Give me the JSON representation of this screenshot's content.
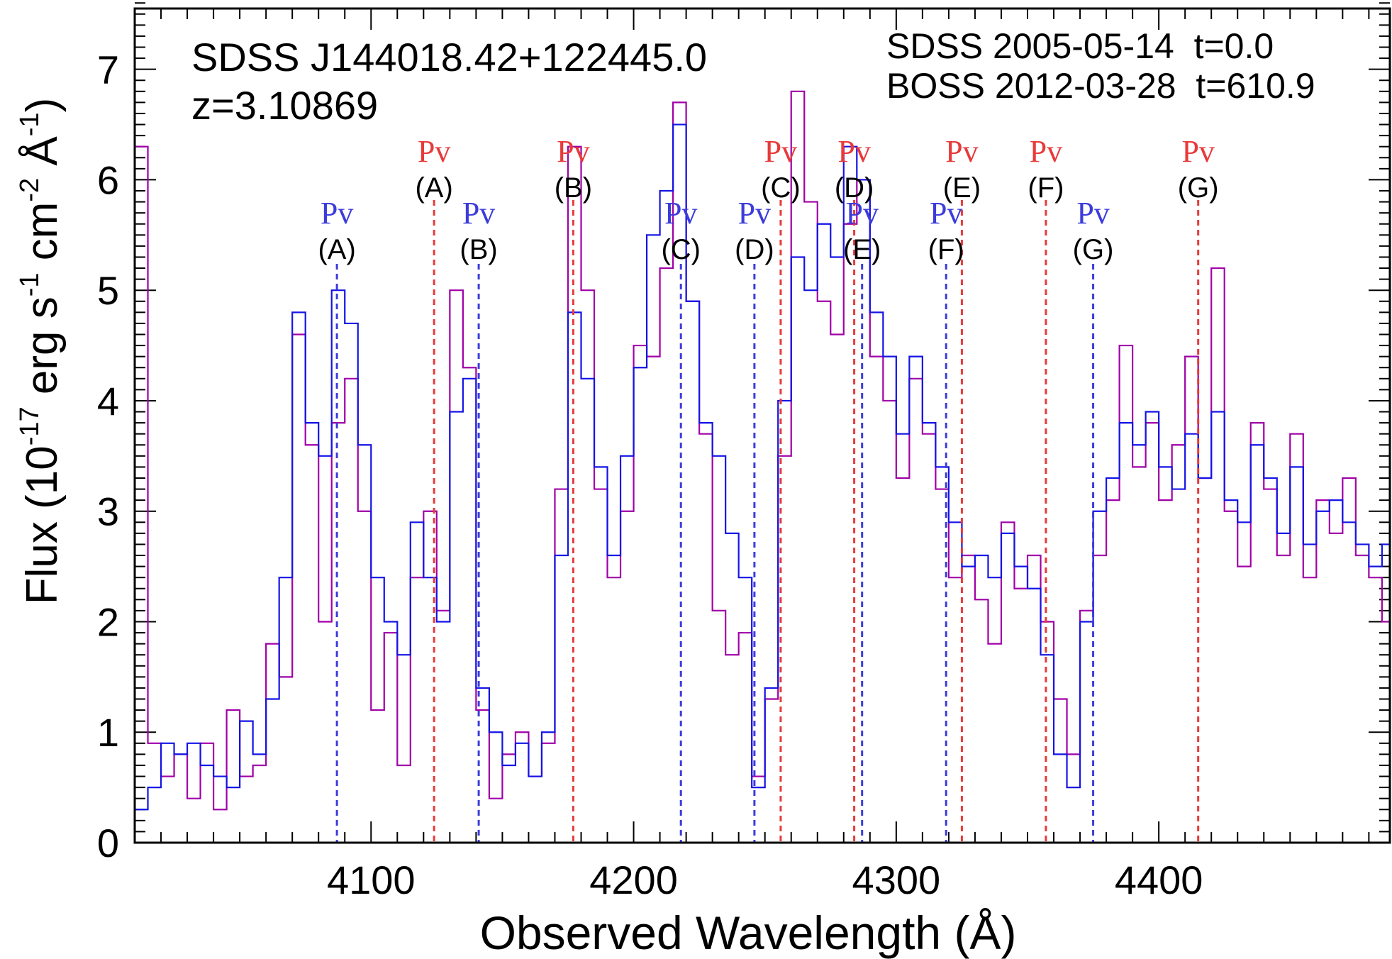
{
  "chart_data": {
    "type": "line",
    "title": "SDSS J144018.42+122445.0",
    "subtitle": "z=3.10869",
    "xlabel": "Observed Wavelength (Å)",
    "ylabel": {
      "prefix": "Flux (10",
      "exp1": "-17",
      "part2": " erg s",
      "exp2": "-1",
      "part3": " cm",
      "exp3": "-2",
      "part4": " Å",
      "exp4": "-1",
      "suffix": ")"
    },
    "xlim": [
      4010,
      4488
    ],
    "ylim": [
      0,
      7.55
    ],
    "xticks": [
      4100,
      4200,
      4300,
      4400
    ],
    "yticks": [
      0,
      1,
      2,
      3,
      4,
      5,
      6,
      7
    ],
    "legend_position": "top-right",
    "series": [
      {
        "name": "SDSS 2005-05-14",
        "label": "SDSS 2005-05-14  t=0.0",
        "color": "#a000a8",
        "x": [
          4010,
          4015,
          4020,
          4025,
          4030,
          4035,
          4040,
          4045,
          4050,
          4055,
          4060,
          4065,
          4070,
          4075,
          4080,
          4085,
          4090,
          4095,
          4100,
          4105,
          4110,
          4115,
          4120,
          4125,
          4130,
          4135,
          4140,
          4145,
          4150,
          4155,
          4160,
          4165,
          4170,
          4175,
          4180,
          4185,
          4190,
          4195,
          4200,
          4205,
          4210,
          4215,
          4220,
          4225,
          4230,
          4235,
          4240,
          4245,
          4250,
          4255,
          4260,
          4265,
          4270,
          4275,
          4280,
          4285,
          4290,
          4295,
          4300,
          4305,
          4310,
          4315,
          4320,
          4325,
          4330,
          4335,
          4340,
          4345,
          4350,
          4355,
          4360,
          4365,
          4370,
          4375,
          4380,
          4385,
          4390,
          4395,
          4400,
          4405,
          4410,
          4415,
          4420,
          4425,
          4430,
          4435,
          4440,
          4445,
          4450,
          4455,
          4460,
          4465,
          4470,
          4475,
          4480,
          4485,
          4488
        ],
        "y": [
          6.3,
          0.9,
          0.6,
          0.8,
          0.4,
          0.9,
          0.3,
          1.2,
          0.6,
          0.7,
          1.8,
          1.5,
          4.6,
          3.6,
          2.0,
          3.8,
          4.2,
          3.0,
          1.2,
          1.9,
          0.7,
          2.4,
          3.0,
          2.1,
          5.0,
          4.3,
          1.2,
          0.4,
          0.8,
          1.0,
          0.6,
          0.9,
          3.2,
          6.3,
          5.0,
          3.2,
          2.4,
          3.0,
          4.5,
          4.4,
          5.2,
          6.7,
          4.9,
          3.7,
          2.1,
          1.7,
          1.9,
          0.6,
          1.3,
          3.5,
          6.8,
          5.8,
          4.9,
          4.6,
          5.6,
          6.0,
          4.4,
          4.0,
          3.3,
          4.2,
          3.7,
          3.2,
          2.4,
          2.6,
          2.2,
          1.8,
          2.9,
          2.3,
          2.6,
          2.0,
          1.3,
          0.8,
          2.1,
          2.6,
          3.1,
          4.5,
          3.4,
          3.8,
          3.1,
          3.6,
          4.4,
          3.3,
          5.2,
          3.0,
          2.5,
          3.8,
          3.2,
          2.6,
          3.7,
          2.4,
          3.1,
          2.8,
          3.3,
          2.6,
          2.4,
          2.0,
          2.3
        ]
      },
      {
        "name": "BOSS 2012-03-28",
        "label": "BOSS 2012-03-28  t=610.9",
        "color": "#1414e6",
        "x": [
          4010,
          4015,
          4020,
          4025,
          4030,
          4035,
          4040,
          4045,
          4050,
          4055,
          4060,
          4065,
          4070,
          4075,
          4080,
          4085,
          4090,
          4095,
          4100,
          4105,
          4110,
          4115,
          4120,
          4125,
          4130,
          4135,
          4140,
          4145,
          4150,
          4155,
          4160,
          4165,
          4170,
          4175,
          4180,
          4185,
          4190,
          4195,
          4200,
          4205,
          4210,
          4215,
          4220,
          4225,
          4230,
          4235,
          4240,
          4245,
          4250,
          4255,
          4260,
          4265,
          4270,
          4275,
          4280,
          4285,
          4290,
          4295,
          4300,
          4305,
          4310,
          4315,
          4320,
          4325,
          4330,
          4335,
          4340,
          4345,
          4350,
          4355,
          4360,
          4365,
          4370,
          4375,
          4380,
          4385,
          4390,
          4395,
          4400,
          4405,
          4410,
          4415,
          4420,
          4425,
          4430,
          4435,
          4440,
          4445,
          4450,
          4455,
          4460,
          4465,
          4470,
          4475,
          4480,
          4485,
          4488
        ],
        "y": [
          0.3,
          0.5,
          0.9,
          0.8,
          0.9,
          0.7,
          0.6,
          0.5,
          1.1,
          0.8,
          1.3,
          2.4,
          4.8,
          3.8,
          3.5,
          5.0,
          4.7,
          3.6,
          2.4,
          2.0,
          1.7,
          2.9,
          2.4,
          2.0,
          3.9,
          4.2,
          1.4,
          1.0,
          0.7,
          0.9,
          0.6,
          1.0,
          2.6,
          4.8,
          4.2,
          3.4,
          2.6,
          3.5,
          4.3,
          5.5,
          5.9,
          6.5,
          4.9,
          3.8,
          3.5,
          2.8,
          2.4,
          0.5,
          1.4,
          4.0,
          5.3,
          5.0,
          5.6,
          5.3,
          6.3,
          6.0,
          4.8,
          4.4,
          3.7,
          4.4,
          3.8,
          3.4,
          2.9,
          2.5,
          2.6,
          2.4,
          2.8,
          2.5,
          2.3,
          1.7,
          0.8,
          0.5,
          2.0,
          3.0,
          3.3,
          3.8,
          3.6,
          3.9,
          3.4,
          3.2,
          3.7,
          3.3,
          3.9,
          3.1,
          2.9,
          3.6,
          3.3,
          2.8,
          3.4,
          2.7,
          3.0,
          3.1,
          2.9,
          2.7,
          2.5,
          2.7,
          2.6
        ]
      }
    ],
    "markers": {
      "sdss": {
        "color": "#e83a3a",
        "label_top": "Pv",
        "items": [
          {
            "label": "(A)",
            "x": 4124
          },
          {
            "label": "(B)",
            "x": 4177
          },
          {
            "label": "(C)",
            "x": 4256
          },
          {
            "label": "(D)",
            "x": 4284
          },
          {
            "label": "(E)",
            "x": 4325
          },
          {
            "label": "(F)",
            "x": 4357
          },
          {
            "label": "(G)",
            "x": 4415
          }
        ]
      },
      "boss": {
        "color": "#3c3cdc",
        "label_top": "Pv",
        "items": [
          {
            "label": "(A)",
            "x": 4087
          },
          {
            "label": "(B)",
            "x": 4141
          },
          {
            "label": "(C)",
            "x": 4218
          },
          {
            "label": "(D)",
            "x": 4246
          },
          {
            "label": "(E)",
            "x": 4287
          },
          {
            "label": "(F)",
            "x": 4319
          },
          {
            "label": "(G)",
            "x": 4375
          }
        ]
      }
    }
  }
}
